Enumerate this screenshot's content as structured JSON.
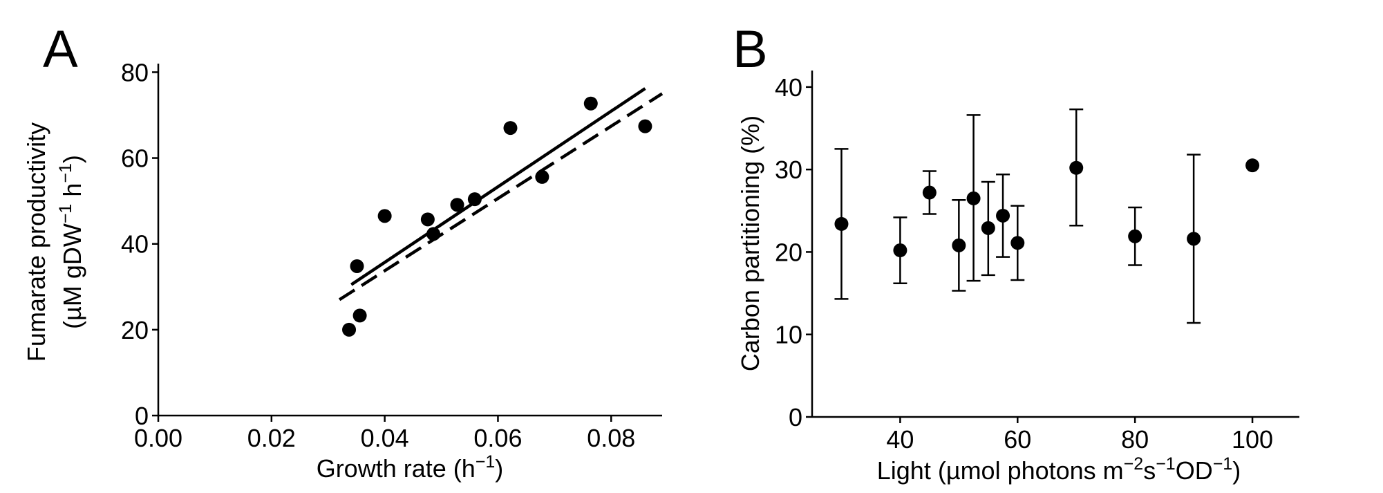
{
  "colors": {
    "marker": "#000000",
    "axis": "#000000",
    "background": "#ffffff"
  },
  "chart_data": [
    {
      "panel": "A",
      "type": "scatter",
      "xlabel": "Growth rate (h−1)",
      "xlabel_parts": {
        "main": "Growth rate (h",
        "sup": "−1",
        "close": ")"
      },
      "ylabel_line1": "Fumarate productivity",
      "ylabel_line2_parts": {
        "a": "(µM gDW",
        "sup1": "−1",
        "b": " h",
        "sup2": "−1",
        "c": ")"
      },
      "xlim": [
        0.0,
        0.089
      ],
      "ylim": [
        0,
        82
      ],
      "xticks": [
        0.0,
        0.02,
        0.04,
        0.06,
        0.08
      ],
      "xtick_labels": [
        "0.00",
        "0.02",
        "0.04",
        "0.06",
        "0.08"
      ],
      "yticks": [
        0,
        20,
        40,
        60,
        80
      ],
      "ytick_labels": [
        "0",
        "20",
        "40",
        "60",
        "80"
      ],
      "grid": false,
      "points": [
        {
          "x": 0.0337,
          "y": 20.0
        },
        {
          "x": 0.0351,
          "y": 34.8
        },
        {
          "x": 0.0356,
          "y": 23.3
        },
        {
          "x": 0.04,
          "y": 46.5
        },
        {
          "x": 0.0476,
          "y": 45.7
        },
        {
          "x": 0.0486,
          "y": 42.3
        },
        {
          "x": 0.0528,
          "y": 49.1
        },
        {
          "x": 0.0559,
          "y": 50.4
        },
        {
          "x": 0.0622,
          "y": 67.0
        },
        {
          "x": 0.0678,
          "y": 55.6
        },
        {
          "x": 0.0764,
          "y": 72.7
        },
        {
          "x": 0.086,
          "y": 67.4
        }
      ],
      "lines": [
        {
          "style": "solid",
          "x": [
            0.0341,
            0.086
          ],
          "y": [
            30.5,
            76.2
          ]
        },
        {
          "style": "dashed",
          "x": [
            0.032,
            0.089
          ],
          "y": [
            27.0,
            75.0
          ]
        }
      ]
    },
    {
      "panel": "B",
      "type": "scatter",
      "xlabel": "Light (µmol photons m−2s−1OD−1)",
      "xlabel_parts": {
        "a": "Light (µmol photons m",
        "sup1": "−2",
        "b": "s",
        "sup2": "−1",
        "c": "OD",
        "sup3": "−1",
        "d": ")"
      },
      "ylabel": "Carbon partitioning (%)",
      "xlim": [
        25,
        108
      ],
      "ylim": [
        0,
        42
      ],
      "xticks": [
        40,
        60,
        80,
        100
      ],
      "xtick_labels": [
        "40",
        "60",
        "80",
        "100"
      ],
      "yticks": [
        0,
        10,
        20,
        30,
        40
      ],
      "ytick_labels": [
        "0",
        "10",
        "20",
        "30",
        "40"
      ],
      "grid": false,
      "points": [
        {
          "x": 30,
          "y": 23.4,
          "err_low": 14.3,
          "err_high": 32.5
        },
        {
          "x": 40,
          "y": 20.2,
          "err_low": 16.2,
          "err_high": 24.2
        },
        {
          "x": 45,
          "y": 27.2,
          "err_low": 24.6,
          "err_high": 29.8
        },
        {
          "x": 50,
          "y": 20.8,
          "err_low": 15.3,
          "err_high": 26.3
        },
        {
          "x": 52.5,
          "y": 26.5,
          "err_low": 16.5,
          "err_high": 36.6
        },
        {
          "x": 55,
          "y": 22.9,
          "err_low": 17.2,
          "err_high": 28.5
        },
        {
          "x": 57.5,
          "y": 24.4,
          "err_low": 19.4,
          "err_high": 29.4
        },
        {
          "x": 60,
          "y": 21.1,
          "err_low": 16.6,
          "err_high": 25.6
        },
        {
          "x": 70,
          "y": 30.2,
          "err_low": 23.2,
          "err_high": 37.3
        },
        {
          "x": 80,
          "y": 21.9,
          "err_low": 18.4,
          "err_high": 25.4
        },
        {
          "x": 90,
          "y": 21.6,
          "err_low": 11.4,
          "err_high": 31.8
        },
        {
          "x": 100,
          "y": 30.5
        }
      ]
    }
  ]
}
